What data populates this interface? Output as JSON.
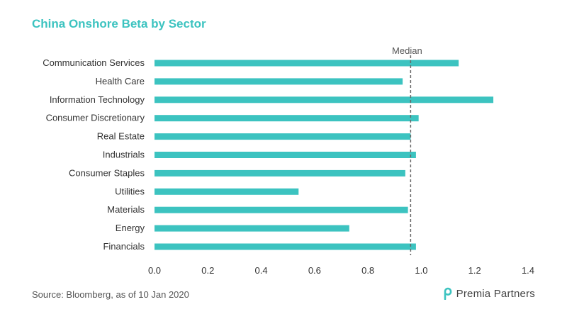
{
  "title": "China Onshore Beta by Sector",
  "source": "Source: Bloomberg,  as of 10 Jan 2020",
  "logo_text": "Premia Partners",
  "colors": {
    "bar": "#3cc3c0",
    "title": "#3cc3c0",
    "median_line": "#666666"
  },
  "chart_data": {
    "type": "bar",
    "orientation": "horizontal",
    "title": "China Onshore Beta by Sector",
    "categories": [
      "Communication Services",
      "Health Care",
      "Information Technology",
      "Consumer Discretionary",
      "Real Estate",
      "Industrials",
      "Consumer Staples",
      "Utilities",
      "Materials",
      "Energy",
      "Financials"
    ],
    "values": [
      1.14,
      0.93,
      1.27,
      0.99,
      0.96,
      0.98,
      0.94,
      0.54,
      0.95,
      0.73,
      0.98
    ],
    "xlim": [
      0,
      1.4
    ],
    "xticks": [
      "0.0",
      "0.2",
      "0.4",
      "0.6",
      "0.8",
      "1.0",
      "1.2",
      "1.4"
    ],
    "median": {
      "label": "Median",
      "value": 0.96
    },
    "grid": false
  }
}
